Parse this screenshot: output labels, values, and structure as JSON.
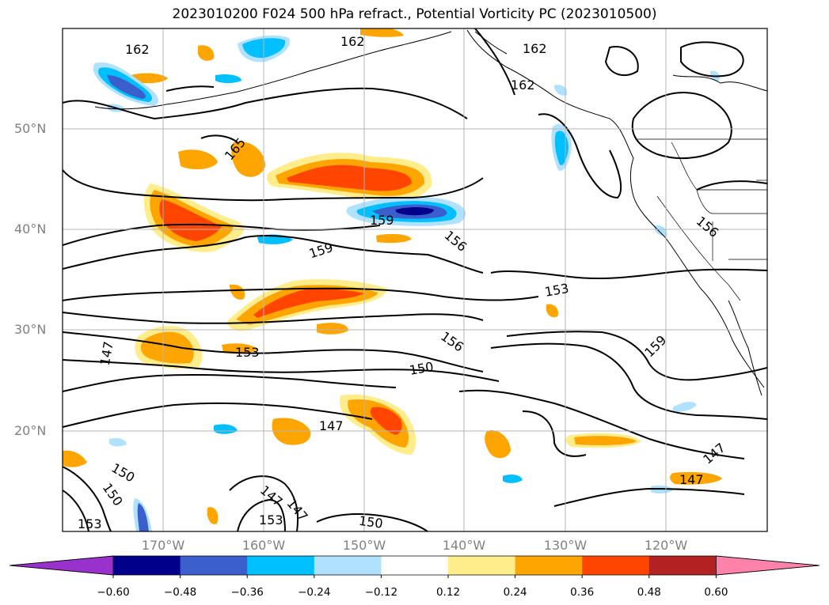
{
  "title": "2023010200 F024 500 hPa refract., Potential Vorticity PC (2023010500)",
  "latitude_labels": [
    "50°N",
    "40°N",
    "30°N",
    "20°N"
  ],
  "longitude_labels": [
    "170°W",
    "160°W",
    "150°W",
    "140°W",
    "130°W",
    "120°W"
  ],
  "contour_labels": [
    "162",
    "162",
    "162",
    "162",
    "165",
    "159",
    "159",
    "156",
    "156",
    "153",
    "153",
    "147",
    "156",
    "150",
    "159",
    "147",
    "147",
    "150",
    "153",
    "150",
    "147",
    "153",
    "150",
    "147",
    "147"
  ],
  "colorbar": {
    "colors": [
      "#9932cc",
      "#00008b",
      "#3a5fcd",
      "#00bfff",
      "#b0e2ff",
      "#ffffff",
      "#ffec8b",
      "#ffa500",
      "#ff4500",
      "#b22222",
      "#ff82ab"
    ],
    "tick_labels": [
      "−0.60",
      "−0.48",
      "−0.36",
      "−0.24",
      "−0.12",
      "0.12",
      "0.24",
      "0.36",
      "0.48",
      "0.60"
    ]
  }
}
